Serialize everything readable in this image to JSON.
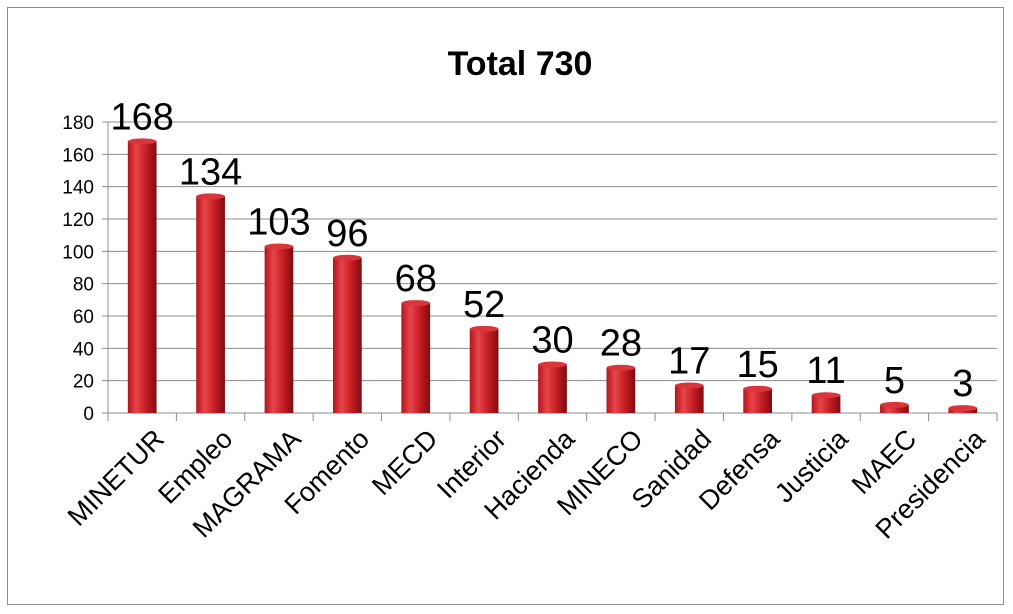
{
  "chart_data": {
    "type": "bar",
    "title": "Total 730",
    "xlabel": "",
    "ylabel": "",
    "categories": [
      "MINETUR",
      "Empleo",
      "MAGRAMA",
      "Fomento",
      "MECD",
      "Interior",
      "Hacienda",
      "MINECO",
      "Sanidad",
      "Defensa",
      "Justicia",
      "MAEC",
      "Presidencia"
    ],
    "values": [
      168,
      134,
      103,
      96,
      68,
      52,
      30,
      28,
      17,
      15,
      11,
      5,
      3
    ],
    "data_labels": [
      "168",
      "134",
      "103",
      "96",
      "68",
      "52",
      "30",
      "28",
      "17",
      "15",
      "11",
      "5",
      "3"
    ],
    "ylim": [
      0,
      180
    ],
    "yticks": [
      0,
      20,
      40,
      60,
      80,
      100,
      120,
      140,
      160,
      180
    ],
    "ytick_labels": [
      "0",
      "20",
      "40",
      "60",
      "80",
      "100",
      "120",
      "140",
      "160",
      "180"
    ],
    "grid": true,
    "legend": "none",
    "colors": {
      "bar_light": "#e8454a",
      "bar_mid": "#c41c22",
      "bar_dark": "#7e0c10",
      "bar_top": "#d9363c",
      "grid": "#8c8c8c",
      "axis": "#8c8c8c"
    }
  }
}
